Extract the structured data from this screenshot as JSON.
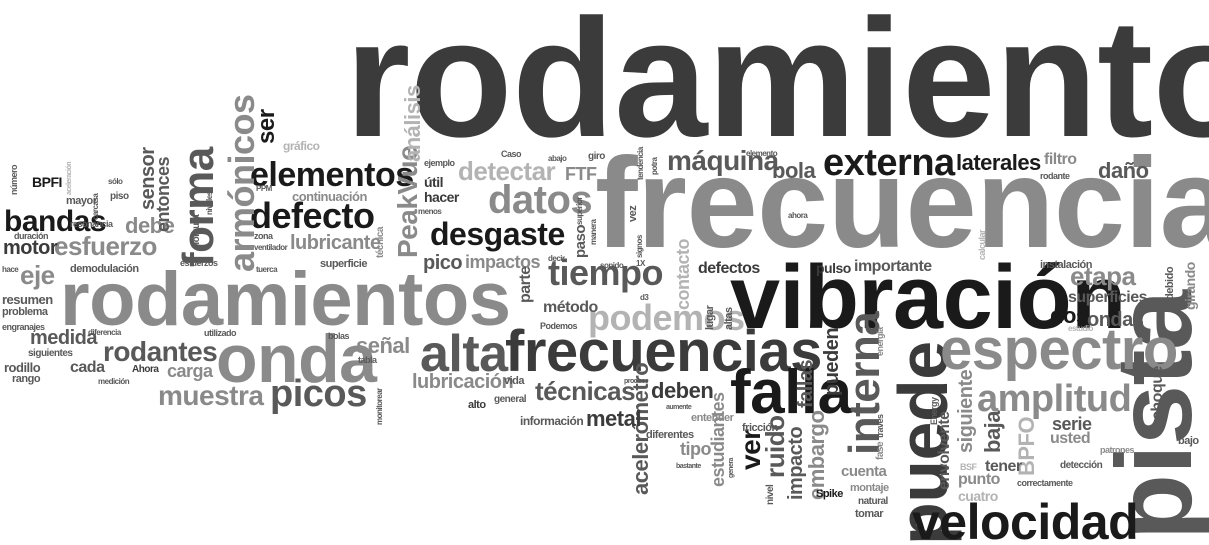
{
  "palette": {
    "dark": "#3b3b3b",
    "mid": "#595959",
    "light": "#8a8a8a",
    "black": "#1a1a1a",
    "pale": "#b3b3b3"
  },
  "words": [
    "rodamiento",
    "frecuencia",
    "rodamientos",
    "vibración",
    "pista",
    "puede",
    "frecuencias",
    "espectro",
    "velocidad",
    "onda",
    "falla",
    "alta",
    "interna",
    "externa",
    "forma",
    "defecto",
    "desgaste",
    "datos",
    "tiempo",
    "máquina",
    "podemos",
    "amplitud",
    "picos",
    "elementos",
    "bandas",
    "esfuerzo",
    "armónicos",
    "PeakVue",
    "análisis",
    "ser",
    "detectar",
    "muestra",
    "rodantes",
    "técnicas",
    "acelerómetro",
    "metal",
    "ruido",
    "ver",
    "deben",
    "fallas",
    "pueden",
    "embargo",
    "impacto",
    "tipo",
    "baja",
    "BPFO",
    "siguiente",
    "envolvente",
    "choque",
    "serie",
    "usted",
    "ondas",
    "dos",
    "etapa",
    "superficies",
    "laterales",
    "daño",
    "filtro",
    "bola",
    "contacto",
    "pico",
    "impactos",
    "lubricante",
    "lubricación",
    "señal",
    "eje",
    "motor",
    "debe",
    "sensor",
    "entonces",
    "BPFI",
    "medida",
    "resumen",
    "cada",
    "carga",
    "rodillo",
    "rango",
    "FTF",
    "útil",
    "hacer",
    "paso",
    "método",
    "parte",
    "defectos",
    "importante",
    "pulso",
    "estudiantes",
    "cuenta",
    "tener",
    "punto",
    "cuatro",
    "girando",
    "debido",
    "instalación",
    "continuación",
    "gráfico",
    "demodulación",
    "superficie",
    "información",
    "general",
    "alto",
    "vida",
    "diferentes",
    "fricción",
    "entender",
    "altas",
    "lugar",
    "Spike",
    "montaje",
    "natural",
    "tomar",
    "detección",
    "patrones",
    "correctamente",
    "BSF",
    "fase",
    "nivel",
    "energía",
    "Energy",
    "través",
    "estudio",
    "calcular",
    "sonido",
    "tendencia",
    "potra",
    "elemento",
    "Ahora",
    "ahora",
    "Caso",
    "abajo",
    "giro",
    "ejemplo",
    "técnica",
    "zona",
    "ventilador",
    "tuerca",
    "esfuerzos",
    "holgura",
    "niveles",
    "PPM",
    "piso",
    "mayor",
    "sólo",
    "carcasa",
    "resonancia",
    "duración",
    "número",
    "aceleración",
    "hace",
    "engranajes",
    "problema",
    "siguientes",
    "diferencia",
    "utilizado",
    "bolas",
    "tabla",
    "medición",
    "monitorear",
    "Podemos",
    "decir",
    "produce",
    "aumente",
    "bastante",
    "genera",
    "vez",
    "signos",
    "menos",
    "superior",
    "manera",
    "1X",
    "d3",
    "aquí",
    "bajo",
    "rodante",
    "entones",
    "fuente"
  ]
}
